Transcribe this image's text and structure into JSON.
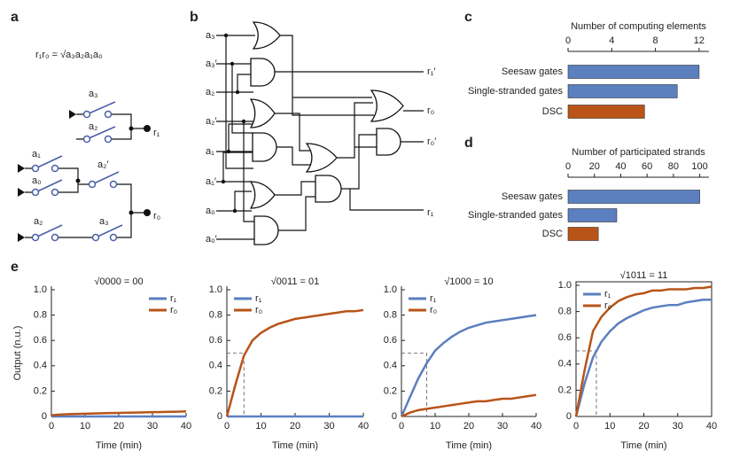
{
  "panel_labels": [
    "a",
    "b",
    "c",
    "d",
    "e"
  ],
  "panel_a": {
    "equation": "r₁r₀ =  √a₃a₂a₁a₀",
    "labels": [
      "a₃",
      "a₂",
      "r₁",
      "a₁",
      "a₂′",
      "a₀",
      "r₀",
      "a₂",
      "a₃"
    ]
  },
  "panel_b": {
    "inputs": [
      "a₃",
      "a₃′",
      "a₂",
      "a₂′",
      "a₁",
      "a₁′",
      "a₀",
      "a₀′"
    ],
    "outputs": [
      "r₁′",
      "r₀",
      "r₀′",
      "r₁"
    ]
  },
  "chart_data": [
    {
      "type": "hbar",
      "title": "Number of computing elements",
      "categories": [
        "Seesaw gates",
        "Single-stranded gates",
        "DSC"
      ],
      "values": [
        12,
        10,
        7
      ],
      "colors": [
        "#5b7fbf",
        "#5b7fbf",
        "#b85418"
      ],
      "xlim": [
        0,
        12.9
      ],
      "xticks": [
        0,
        4,
        8,
        12
      ]
    },
    {
      "type": "hbar",
      "title": "Number of participated strands",
      "categories": [
        "Seesaw gates",
        "Single-stranded gates",
        "DSC"
      ],
      "values": [
        100,
        37,
        23
      ],
      "colors": [
        "#5b7fbf",
        "#5b7fbf",
        "#b85418"
      ],
      "xlim": [
        0,
        107
      ],
      "xticks": [
        0,
        20,
        40,
        60,
        80,
        100
      ]
    },
    {
      "type": "line",
      "title": "√0000 = 00",
      "xlabel": "Time (min)",
      "ylabel": "Output (n.u.)",
      "x": [
        0,
        2.5,
        5,
        7.5,
        10,
        12.5,
        15,
        17.5,
        20,
        22.5,
        25,
        27.5,
        30,
        32.5,
        35,
        37.5,
        40
      ],
      "series": [
        {
          "name": "r₁",
          "color": "#5b7fbf",
          "values": [
            0,
            0,
            0,
            0,
            0,
            0,
            0,
            0,
            0,
            0,
            0,
            0,
            0,
            0,
            0,
            0,
            0
          ]
        },
        {
          "name": "r₀",
          "color": "#b85418",
          "values": [
            0.01,
            0.015,
            0.018,
            0.02,
            0.022,
            0.024,
            0.025,
            0.027,
            0.028,
            0.03,
            0.031,
            0.032,
            0.034,
            0.035,
            0.037,
            0.038,
            0.04
          ]
        }
      ],
      "xlim": [
        0,
        40
      ],
      "ylim": [
        0,
        1
      ],
      "xticks": [
        0,
        10,
        20,
        30,
        40
      ],
      "yticks": [
        0,
        0.2,
        0.4,
        0.6,
        0.8,
        {
          "value": 1,
          "label": "1.0"
        }
      ],
      "legend": "upper right",
      "box": false
    },
    {
      "type": "line",
      "title": "√0011 = 01",
      "xlabel": "Time (min)",
      "x": [
        0,
        2.5,
        5,
        7.5,
        10,
        12.5,
        15,
        17.5,
        20,
        22.5,
        25,
        27.5,
        30,
        32.5,
        35,
        37.5,
        40
      ],
      "series": [
        {
          "name": "r₁",
          "color": "#5b7fbf",
          "values": [
            0,
            0,
            0,
            0,
            0,
            0,
            0,
            0,
            0,
            0,
            0,
            0,
            0,
            0,
            0,
            0,
            0
          ]
        },
        {
          "name": "r₀",
          "color": "#b85418",
          "values": [
            0,
            0.25,
            0.48,
            0.6,
            0.66,
            0.7,
            0.73,
            0.75,
            0.77,
            0.78,
            0.79,
            0.8,
            0.81,
            0.82,
            0.83,
            0.83,
            0.84
          ]
        }
      ],
      "xlim": [
        0,
        40
      ],
      "ylim": [
        0,
        1
      ],
      "xticks": [
        0,
        10,
        20,
        30,
        40
      ],
      "yticks": [
        0,
        0.2,
        0.4,
        0.6,
        0.8,
        {
          "value": 1,
          "label": "1.0"
        }
      ],
      "legend": "upper left",
      "box": false,
      "guide": {
        "x": 5,
        "y": 0.5
      }
    },
    {
      "type": "line",
      "title": "√1000 = 10",
      "xlabel": "Time (min)",
      "x": [
        0,
        2.5,
        5,
        7.5,
        10,
        12.5,
        15,
        17.5,
        20,
        22.5,
        25,
        27.5,
        30,
        32.5,
        35,
        37.5,
        40
      ],
      "series": [
        {
          "name": "r₁",
          "color": "#5b7fbf",
          "values": [
            0,
            0.15,
            0.3,
            0.42,
            0.52,
            0.58,
            0.63,
            0.67,
            0.7,
            0.72,
            0.74,
            0.75,
            0.76,
            0.77,
            0.78,
            0.79,
            0.8
          ]
        },
        {
          "name": "r₀",
          "color": "#b85418",
          "values": [
            0,
            0.03,
            0.05,
            0.06,
            0.07,
            0.08,
            0.09,
            0.1,
            0.11,
            0.12,
            0.12,
            0.13,
            0.14,
            0.14,
            0.15,
            0.16,
            0.17
          ]
        }
      ],
      "xlim": [
        0,
        40
      ],
      "ylim": [
        0,
        1
      ],
      "xticks": [
        0,
        10,
        20,
        30,
        40
      ],
      "yticks": [
        0,
        0.2,
        0.4,
        0.6,
        0.8,
        {
          "value": 1,
          "label": "1.0"
        }
      ],
      "legend": "upper left",
      "box": false,
      "guide": {
        "x": 7.5,
        "y": 0.5
      }
    },
    {
      "type": "line",
      "title": "√1011 = 11",
      "xlabel": "Time (min)",
      "x": [
        0,
        2.5,
        5,
        7.5,
        10,
        12.5,
        15,
        17.5,
        20,
        22.5,
        25,
        27.5,
        30,
        32.5,
        35,
        37.5,
        40
      ],
      "series": [
        {
          "name": "r₁",
          "color": "#5b7fbf",
          "values": [
            0,
            0.25,
            0.45,
            0.57,
            0.65,
            0.71,
            0.75,
            0.78,
            0.81,
            0.83,
            0.84,
            0.85,
            0.85,
            0.87,
            0.88,
            0.89,
            0.89
          ]
        },
        {
          "name": "r₀",
          "color": "#b85418",
          "values": [
            0,
            0.35,
            0.65,
            0.76,
            0.83,
            0.88,
            0.91,
            0.93,
            0.94,
            0.96,
            0.96,
            0.97,
            0.97,
            0.97,
            0.98,
            0.98,
            0.99
          ]
        }
      ],
      "xlim": [
        0,
        40
      ],
      "ylim": [
        0,
        1
      ],
      "xticks": [
        0,
        10,
        20,
        30,
        40
      ],
      "yticks": [
        0,
        0.2,
        0.4,
        0.6,
        0.8,
        {
          "value": 1,
          "label": "1.0"
        }
      ],
      "legend": "upper left",
      "box": true,
      "guide": {
        "x": 6,
        "y": 0.5
      }
    }
  ]
}
